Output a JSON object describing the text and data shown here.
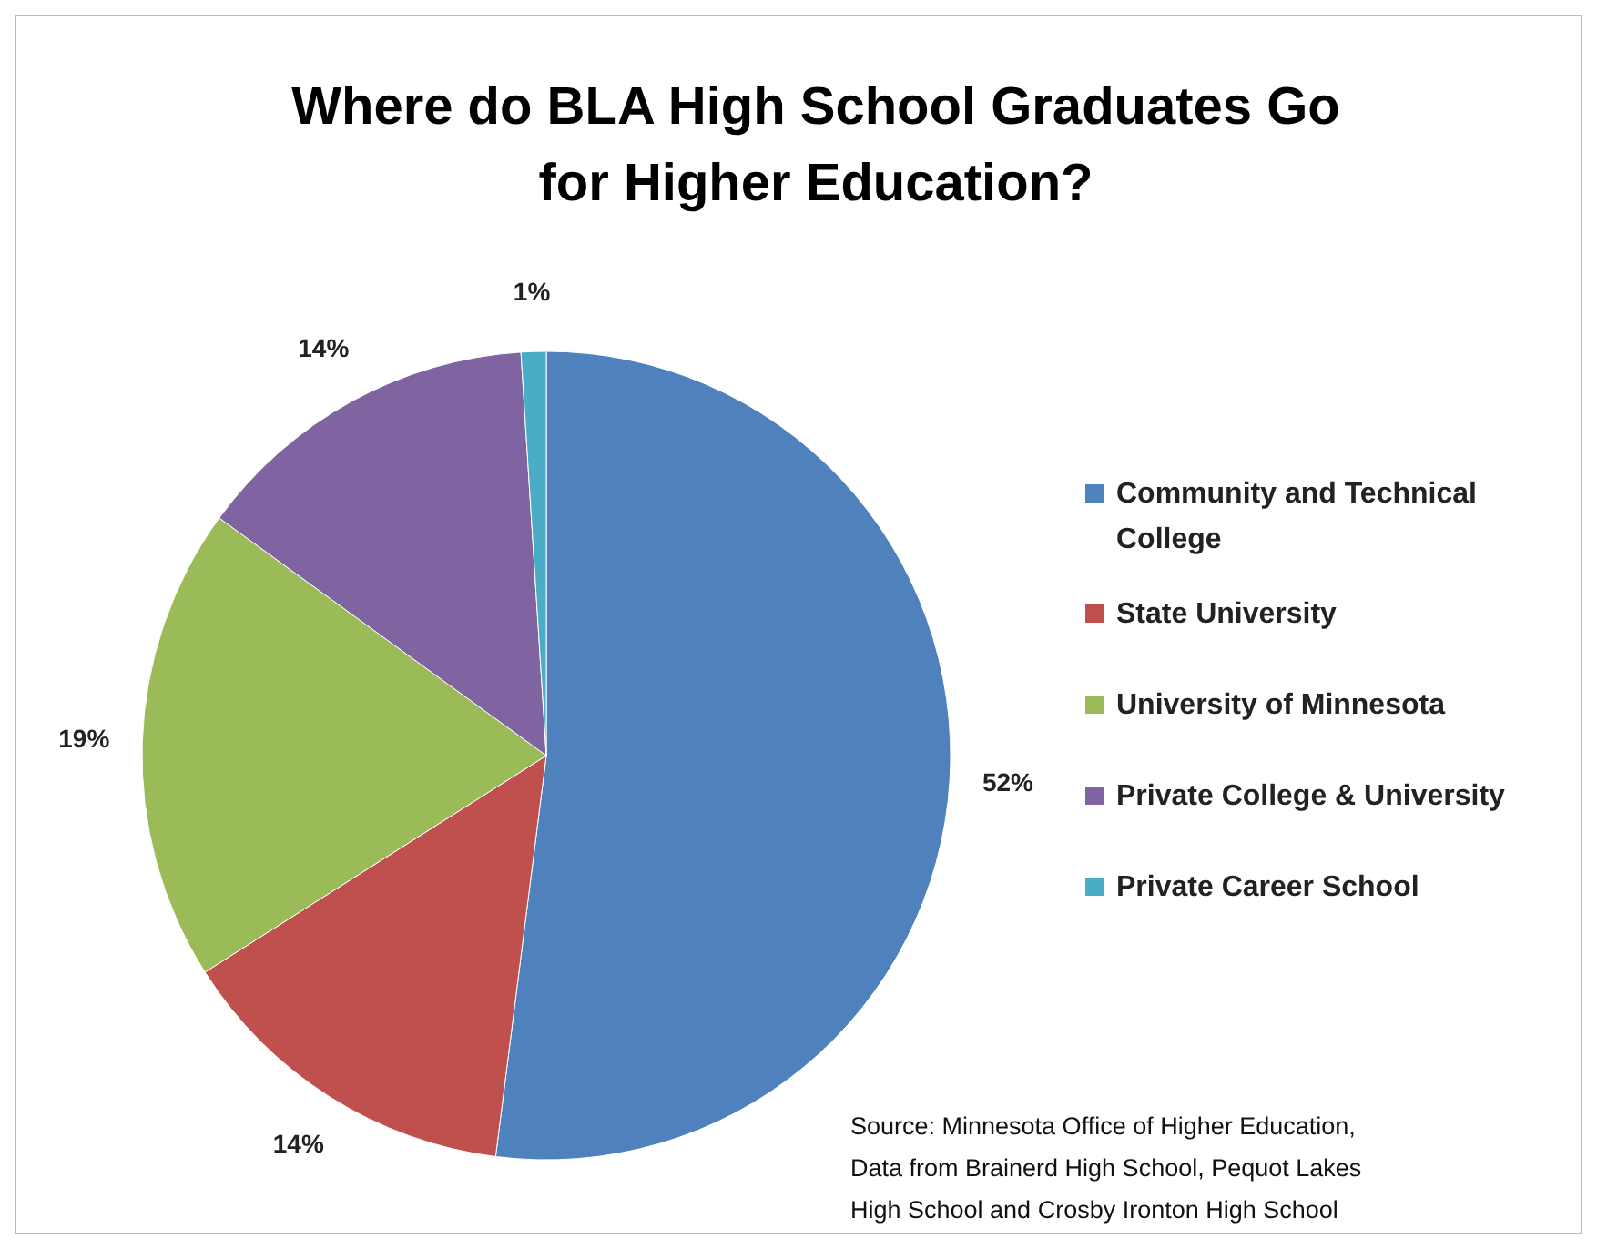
{
  "chart_data": {
    "type": "pie",
    "title": "Where do BLA High School Graduates Go for Higher Education?",
    "categories": [
      "Community and Technical College",
      "State University",
      "University of Minnesota",
      "Private College & University",
      "Private Career School"
    ],
    "values": [
      52,
      14,
      19,
      14,
      1
    ],
    "colors": [
      "#4f81bd",
      "#c0504d",
      "#9bbb59",
      "#8064a2",
      "#4bacc6"
    ],
    "value_labels": [
      "52%",
      "14%",
      "19%",
      "14%",
      "1%"
    ],
    "legend": "right",
    "annotations": [
      "Source: Minnesota Office of Higher Education, Data from Brainerd High School, Pequot Lakes High School and Crosby Ironton High School"
    ]
  }
}
